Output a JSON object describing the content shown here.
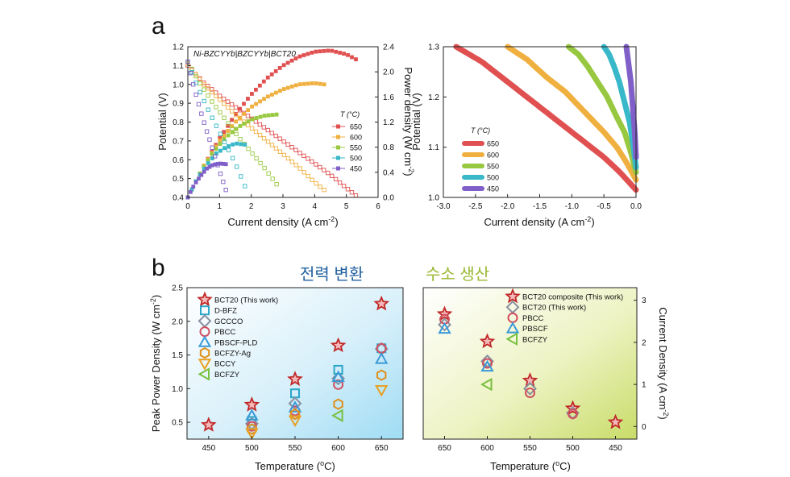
{
  "panel_labels": {
    "a": "a",
    "b": "b"
  },
  "headings": {
    "power": "전력 변환",
    "hydrogen": "수소 생산"
  },
  "colors": {
    "c650": "#e05050",
    "c600": "#f0b040",
    "c550": "#98c840",
    "c500": "#38b8c8",
    "c450": "#8060c8",
    "star": "#c02828",
    "dbfz": "#2aa6c8",
    "gccco": "#8890a0",
    "pbcc": "#d05060",
    "pbscf": "#3a9ad8",
    "bcfzyag": "#e0901c",
    "bccy": "#e8a020",
    "bcfzy": "#78c040",
    "heading_power": "#2060a0",
    "heading_h2": "#98b830"
  },
  "chart_data": [
    {
      "id": "a-left",
      "type": "line",
      "title": "Ni-BZCYYb|BZCYYb|BCT20",
      "xlabel": "Current density (A cm",
      "xlabel_sup": "-2",
      "xlabel_end": ")",
      "ylabel": "Potential (V)",
      "y2label": "Power density (W cm",
      "y2label_sup": "-2",
      "y2label_end": ")",
      "xlim": [
        0,
        6
      ],
      "ylim": [
        0.4,
        1.2
      ],
      "y2lim": [
        0,
        2.4
      ],
      "xticks": [
        "0",
        "1",
        "2",
        "3",
        "4",
        "5",
        "6"
      ],
      "yticks": [
        "0.4",
        "0.5",
        "0.6",
        "0.7",
        "0.8",
        "0.9",
        "1.0",
        "1.1",
        "1.2"
      ],
      "y2ticks": [
        "0.0",
        "0.4",
        "0.8",
        "1.2",
        "1.6",
        "2.0",
        "2.4"
      ],
      "legend_title": "T (°C)",
      "series": [
        {
          "name": "650",
          "color_key": "c650",
          "voltage": {
            "x": [
              0,
              0.5,
              1,
              1.5,
              2,
              2.5,
              3,
              3.5,
              4,
              4.5,
              5,
              5.3
            ],
            "y": [
              1.1,
              1.01,
              0.94,
              0.88,
              0.82,
              0.76,
              0.7,
              0.64,
              0.58,
              0.52,
              0.45,
              0.41
            ]
          },
          "power": {
            "x": [
              0,
              0.5,
              1,
              1.5,
              2,
              2.5,
              3,
              3.5,
              4,
              4.5,
              5,
              5.3
            ],
            "y": [
              0,
              0.5,
              0.94,
              1.32,
              1.64,
              1.9,
              2.1,
              2.24,
              2.32,
              2.34,
              2.28,
              2.2
            ]
          }
        },
        {
          "name": "600",
          "color_key": "c600",
          "voltage": {
            "x": [
              0,
              0.5,
              1,
              1.5,
              2,
              2.5,
              3,
              3.5,
              4,
              4.3
            ],
            "y": [
              1.11,
              1.0,
              0.92,
              0.84,
              0.77,
              0.7,
              0.63,
              0.56,
              0.48,
              0.44
            ]
          },
          "power": {
            "x": [
              0,
              0.5,
              1,
              1.5,
              2,
              2.5,
              3,
              3.5,
              4,
              4.3
            ],
            "y": [
              0,
              0.5,
              0.9,
              1.2,
              1.44,
              1.6,
              1.72,
              1.8,
              1.82,
              1.8
            ]
          }
        },
        {
          "name": "550",
          "color_key": "c550",
          "voltage": {
            "x": [
              0,
              0.4,
              0.8,
              1.2,
              1.6,
              2,
              2.4,
              2.8
            ],
            "y": [
              1.12,
              1.0,
              0.9,
              0.81,
              0.72,
              0.64,
              0.56,
              0.47
            ]
          },
          "power": {
            "x": [
              0,
              0.4,
              0.8,
              1.2,
              1.6,
              2,
              2.4,
              2.8
            ],
            "y": [
              0,
              0.4,
              0.72,
              0.96,
              1.12,
              1.24,
              1.3,
              1.32
            ]
          }
        },
        {
          "name": "500",
          "color_key": "c500",
          "voltage": {
            "x": [
              0,
              0.3,
              0.6,
              0.9,
              1.2,
              1.5,
              1.8
            ],
            "y": [
              1.12,
              0.99,
              0.88,
              0.78,
              0.68,
              0.58,
              0.46
            ]
          },
          "power": {
            "x": [
              0,
              0.3,
              0.6,
              0.9,
              1.2,
              1.5,
              1.8
            ],
            "y": [
              0,
              0.3,
              0.52,
              0.7,
              0.8,
              0.86,
              0.84
            ]
          }
        },
        {
          "name": "450",
          "color_key": "c450",
          "voltage": {
            "x": [
              0,
              0.2,
              0.4,
              0.6,
              0.8,
              1.0,
              1.2
            ],
            "y": [
              1.12,
              0.98,
              0.86,
              0.75,
              0.65,
              0.54,
              0.44
            ]
          },
          "power": {
            "x": [
              0,
              0.2,
              0.4,
              0.6,
              0.8,
              1.0,
              1.2
            ],
            "y": [
              0,
              0.2,
              0.34,
              0.46,
              0.52,
              0.54,
              0.53
            ]
          }
        }
      ]
    },
    {
      "id": "a-right",
      "type": "line",
      "xlabel": "Current density (A cm",
      "xlabel_sup": "-2",
      "xlabel_end": ")",
      "ylabel": "Potential (V)",
      "xlim": [
        -3.0,
        0.0
      ],
      "ylim": [
        1.0,
        1.3
      ],
      "xticks": [
        "-3.0",
        "-2.5",
        "-2.0",
        "-1.5",
        "-1.0",
        "-0.5",
        "0.0"
      ],
      "yticks": [
        "1.0",
        "1.1",
        "1.2",
        "1.3"
      ],
      "legend_title": "T (°C)",
      "series": [
        {
          "name": "650",
          "color_key": "c650",
          "x": [
            0,
            -0.25,
            -0.5,
            -0.8,
            -1.2,
            -1.6,
            -2.0,
            -2.4,
            -2.8
          ],
          "y": [
            1.015,
            1.05,
            1.08,
            1.11,
            1.15,
            1.19,
            1.23,
            1.27,
            1.3
          ]
        },
        {
          "name": "600",
          "color_key": "c600",
          "x": [
            0,
            -0.15,
            -0.3,
            -0.5,
            -0.8,
            -1.1,
            -1.4,
            -1.7,
            -2.0
          ],
          "y": [
            1.035,
            1.07,
            1.1,
            1.13,
            1.17,
            1.21,
            1.24,
            1.275,
            1.3
          ]
        },
        {
          "name": "550",
          "color_key": "c550",
          "x": [
            0,
            -0.08,
            -0.18,
            -0.3,
            -0.45,
            -0.6,
            -0.75,
            -0.9,
            -1.05
          ],
          "y": [
            1.05,
            1.09,
            1.13,
            1.16,
            1.2,
            1.23,
            1.26,
            1.285,
            1.3
          ]
        },
        {
          "name": "500",
          "color_key": "c500",
          "x": [
            0,
            -0.04,
            -0.1,
            -0.18,
            -0.26,
            -0.34,
            -0.42,
            -0.5
          ],
          "y": [
            1.06,
            1.1,
            1.15,
            1.19,
            1.23,
            1.26,
            1.285,
            1.3
          ]
        },
        {
          "name": "450",
          "color_key": "c450",
          "x": [
            0,
            -0.02,
            -0.05,
            -0.08,
            -0.12,
            -0.15
          ],
          "y": [
            1.08,
            1.13,
            1.18,
            1.23,
            1.27,
            1.3
          ]
        }
      ]
    },
    {
      "id": "b-left",
      "type": "scatter",
      "xlabel": "Temperature (",
      "xlabel_sup": "o",
      "xlabel_end": "C)",
      "ylabel": "Peak Power Density (W cm",
      "ylabel_sup": "-2",
      "ylabel_end": ")",
      "xlim": [
        425,
        675
      ],
      "ylim": [
        0.25,
        2.5
      ],
      "xticks": [
        "450",
        "500",
        "550",
        "600",
        "650"
      ],
      "yticks": [
        "0.5",
        "1.0",
        "1.5",
        "2.0",
        "2.5"
      ],
      "series": [
        {
          "name": "BCT20 (This work)",
          "marker": "star",
          "color_key": "star",
          "x": [
            450,
            500,
            550,
            600,
            650
          ],
          "y": [
            0.46,
            0.76,
            1.14,
            1.64,
            2.26
          ]
        },
        {
          "name": "D-BFZ",
          "marker": "square",
          "color_key": "dbfz",
          "x": [
            500,
            550,
            600,
            650
          ],
          "y": [
            0.52,
            0.93,
            1.28,
            1.6
          ]
        },
        {
          "name": "GCCCO",
          "marker": "diamond",
          "color_key": "gccco",
          "x": [
            500,
            550,
            600,
            650
          ],
          "y": [
            0.48,
            0.78,
            1.15,
            1.59
          ]
        },
        {
          "name": "PBCC",
          "marker": "circle",
          "color_key": "pbcc",
          "x": [
            500,
            550,
            600,
            650
          ],
          "y": [
            0.44,
            0.67,
            1.06,
            1.6
          ]
        },
        {
          "name": "PBSCF-PLD",
          "marker": "triangle-up",
          "color_key": "pbscf",
          "x": [
            500,
            550,
            600,
            650
          ],
          "y": [
            0.6,
            0.72,
            1.17,
            1.44
          ]
        },
        {
          "name": "BCFZY-Ag",
          "marker": "hexagon",
          "color_key": "bcfzyag",
          "x": [
            500,
            550,
            600,
            650
          ],
          "y": [
            0.4,
            0.62,
            0.77,
            1.2
          ]
        },
        {
          "name": "BCCY",
          "marker": "triangle-down",
          "color_key": "bccy",
          "x": [
            500,
            550,
            650
          ],
          "y": [
            0.34,
            0.53,
            0.98
          ]
        },
        {
          "name": "BCFZY",
          "marker": "triangle-left",
          "color_key": "bcfzy",
          "x": [
            600
          ],
          "y": [
            0.6
          ]
        }
      ]
    },
    {
      "id": "b-right",
      "type": "scatter",
      "xlabel": "Temperature (",
      "xlabel_sup": "o",
      "xlabel_end": "C)",
      "ylabel": "Current Density (A cm",
      "ylabel_sup": "-2",
      "ylabel_end": ")",
      "xlim": [
        675,
        425
      ],
      "ylim": [
        -0.3,
        3.3
      ],
      "xticks": [
        "650",
        "600",
        "550",
        "500",
        "450"
      ],
      "yticks": [
        "0",
        "1",
        "2",
        "3"
      ],
      "series": [
        {
          "name": "BCT20 composite (This work)",
          "marker": "star",
          "color_key": "star",
          "x": [
            650,
            600,
            550,
            500,
            450
          ],
          "y": [
            2.67,
            2.02,
            1.09,
            0.43,
            0.1
          ]
        },
        {
          "name": "BCT20 (This work)",
          "marker": "diamond",
          "color_key": "gccco",
          "x": [
            650,
            600,
            550,
            500
          ],
          "y": [
            2.42,
            1.55,
            0.9,
            0.32
          ]
        },
        {
          "name": "PBCC",
          "marker": "circle",
          "color_key": "pbcc",
          "x": [
            650,
            600,
            550,
            500
          ],
          "y": [
            2.55,
            1.5,
            0.8,
            0.3
          ]
        },
        {
          "name": "PBSCF",
          "marker": "triangle-up",
          "color_key": "pbscf",
          "x": [
            650,
            600
          ],
          "y": [
            2.32,
            1.42
          ]
        },
        {
          "name": "BCFZY",
          "marker": "triangle-left",
          "color_key": "bcfzy",
          "x": [
            600
          ],
          "y": [
            1.0
          ]
        }
      ]
    }
  ]
}
